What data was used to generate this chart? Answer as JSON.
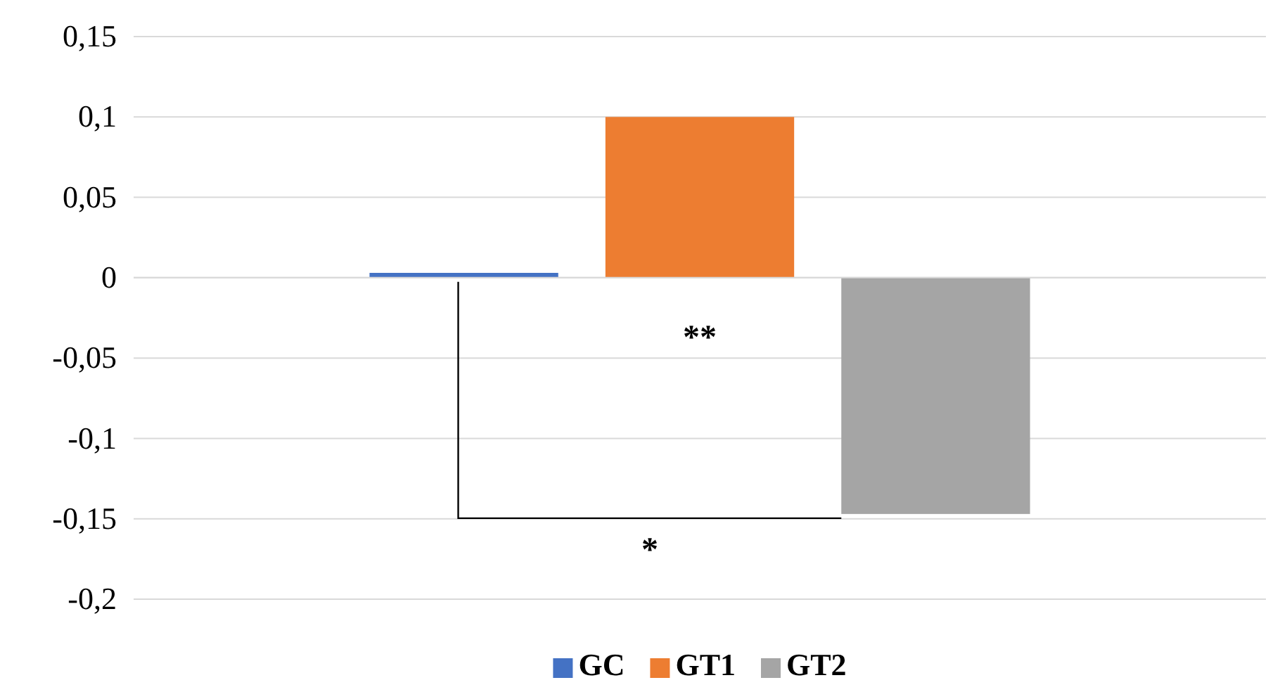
{
  "chart_data": {
    "type": "bar",
    "categories": [
      null
    ],
    "series": [
      {
        "name": "GC",
        "color": "#4472c4",
        "values": [
          0.003
        ]
      },
      {
        "name": "GT1",
        "color": "#ed7d31",
        "values": [
          0.1
        ]
      },
      {
        "name": "GT2",
        "color": "#a5a5a5",
        "values": [
          -0.147
        ]
      }
    ],
    "ylim": [
      -0.2,
      0.15
    ],
    "yticks": [
      {
        "value": -0.2,
        "label": "-0,2"
      },
      {
        "value": -0.15,
        "label": "-0,15"
      },
      {
        "value": -0.1,
        "label": "-0,1"
      },
      {
        "value": -0.05,
        "label": "-0,05"
      },
      {
        "value": 0,
        "label": "0"
      },
      {
        "value": 0.05,
        "label": "0,05"
      },
      {
        "value": 0.1,
        "label": "0,1"
      },
      {
        "value": 0.15,
        "label": "0,15"
      }
    ],
    "grid": "y",
    "legend": "bottom",
    "annotations": [
      "**",
      "*"
    ]
  }
}
